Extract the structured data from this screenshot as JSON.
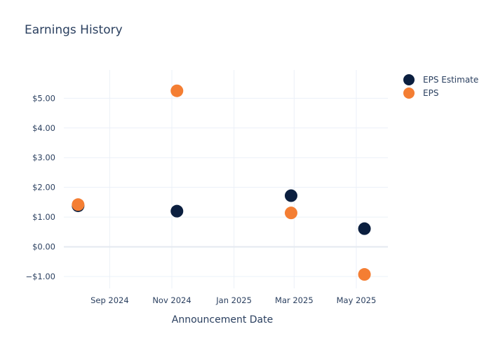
{
  "chart_data": {
    "type": "scatter",
    "title": "Earnings History",
    "xlabel": "Announcement Date",
    "ylabel": "",
    "x_ticks": [
      {
        "date": "2024-09-01",
        "label": "Sep 2024"
      },
      {
        "date": "2024-11-01",
        "label": "Nov 2024"
      },
      {
        "date": "2025-01-01",
        "label": "Jan 2025"
      },
      {
        "date": "2025-03-01",
        "label": "Mar 2025"
      },
      {
        "date": "2025-05-01",
        "label": "May 2025"
      }
    ],
    "y_ticks": [
      {
        "value": -1,
        "label": "−$1.00"
      },
      {
        "value": 0,
        "label": "$0.00"
      },
      {
        "value": 1,
        "label": "$1.00"
      },
      {
        "value": 2,
        "label": "$2.00"
      },
      {
        "value": 3,
        "label": "$3.00"
      },
      {
        "value": 4,
        "label": "$4.00"
      },
      {
        "value": 5,
        "label": "$5.00"
      }
    ],
    "xlim": [
      "2024-07-18",
      "2025-06-01"
    ],
    "ylim": [
      -1.4,
      5.95
    ],
    "grid": true,
    "legend_position": "top-right",
    "series": [
      {
        "name": "EPS Estimate",
        "color": "#0b1f3f",
        "points": [
          {
            "x": "2024-08-01",
            "y": 1.38
          },
          {
            "x": "2024-11-06",
            "y": 1.2
          },
          {
            "x": "2025-02-26",
            "y": 1.72
          },
          {
            "x": "2025-05-09",
            "y": 0.61
          }
        ]
      },
      {
        "name": "EPS",
        "color": "#f47e33",
        "points": [
          {
            "x": "2024-08-01",
            "y": 1.42
          },
          {
            "x": "2024-11-06",
            "y": 5.25
          },
          {
            "x": "2025-02-26",
            "y": 1.14
          },
          {
            "x": "2025-05-09",
            "y": -0.93
          }
        ]
      }
    ]
  }
}
